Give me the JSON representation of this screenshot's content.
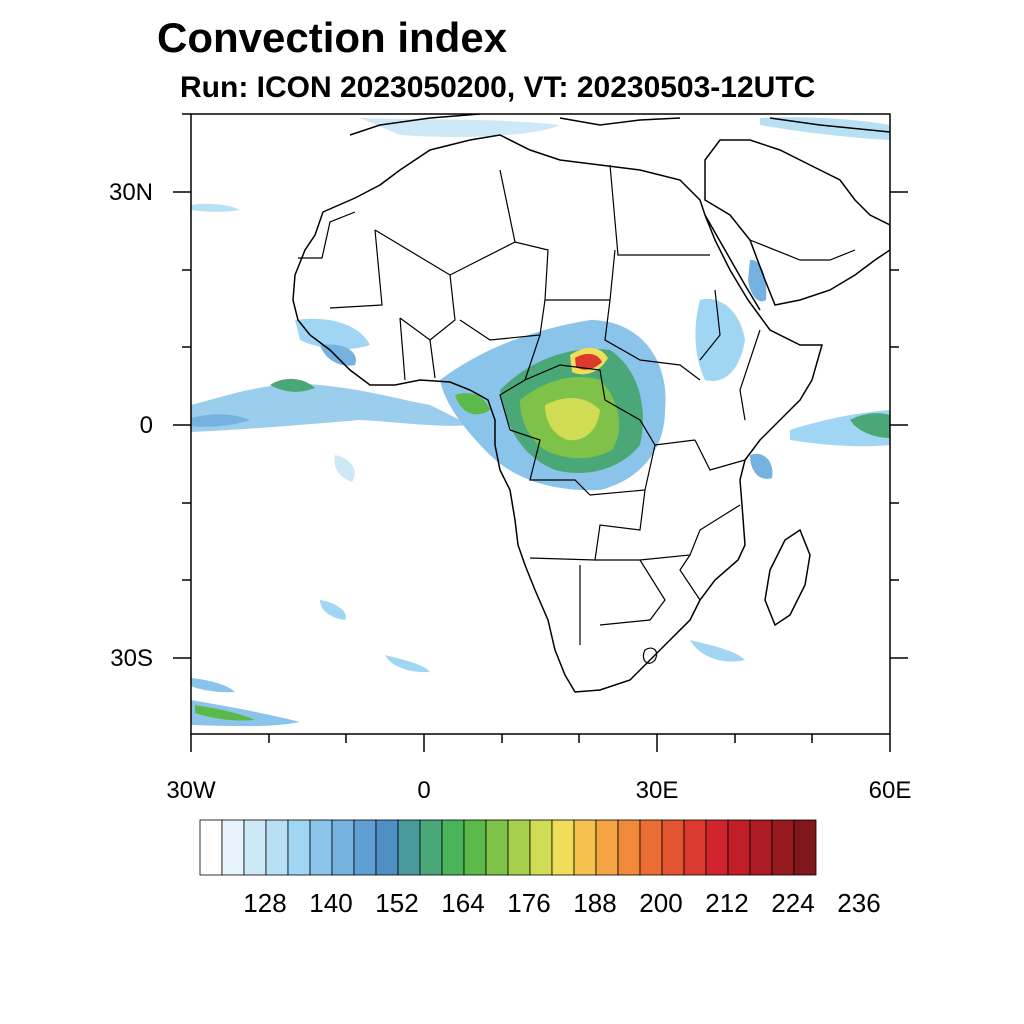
{
  "title": "Convection index",
  "subtitle": "Run: ICON 2023050200,  VT: 20230503-12UTC",
  "map": {
    "lat_labels": [
      "30N",
      "0",
      "30S"
    ],
    "lon_labels": [
      "30W",
      "0",
      "30E",
      "60E"
    ],
    "lat_range": [
      -40,
      40
    ],
    "lon_range": [
      -30,
      60
    ]
  },
  "colorbar": {
    "labels": [
      "128",
      "140",
      "152",
      "164",
      "176",
      "188",
      "200",
      "212",
      "224",
      "236"
    ],
    "colors": [
      "#ffffff",
      "#e8f4fb",
      "#cde9f7",
      "#b7e0f5",
      "#a0d6f3",
      "#8ac4ea",
      "#75b2e0",
      "#5f9fd4",
      "#4e8fc4",
      "#4a9a9c",
      "#4aa778",
      "#4ab45a",
      "#5ab948",
      "#7fc24a",
      "#a6cf4e",
      "#d1dc55",
      "#eede5a",
      "#f4c04e",
      "#f4a442",
      "#f08a3a",
      "#ea6e34",
      "#e35530",
      "#dc3a2e",
      "#d2242c",
      "#c01f28",
      "#ac1c24",
      "#961a20",
      "#7f171c"
    ]
  }
}
